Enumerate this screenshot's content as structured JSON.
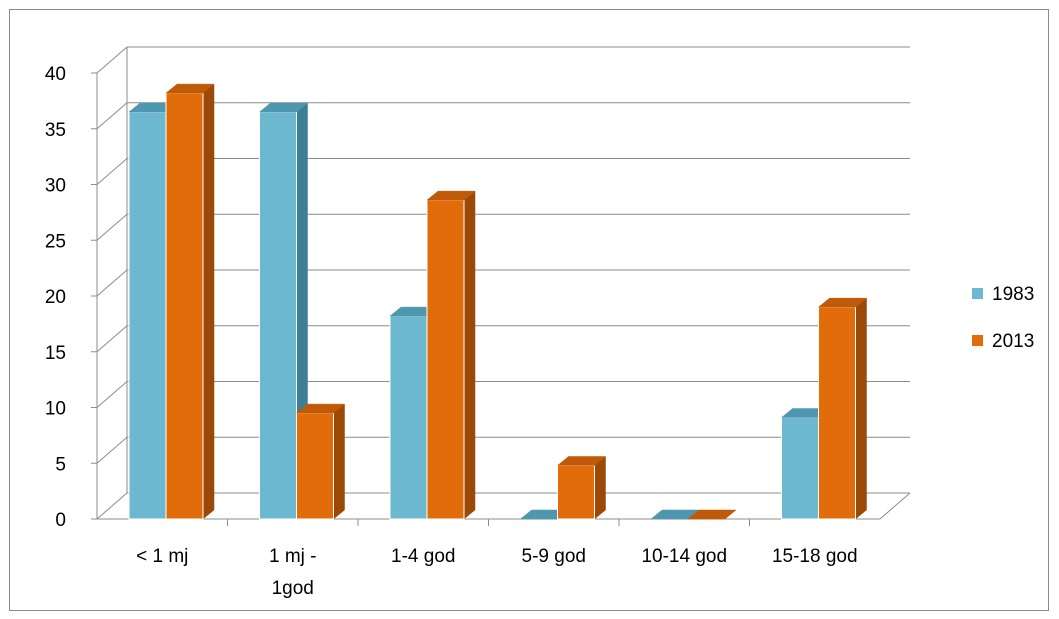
{
  "chart_data": {
    "type": "bar",
    "categories": [
      "< 1 mj",
      "1 mj - 1god",
      "1-4 god",
      "5-9 god",
      "10-14 god",
      "15-18 god"
    ],
    "category_label_lines": [
      [
        "< 1 mj"
      ],
      [
        "1 mj -",
        "1god"
      ],
      [
        "1-4 god"
      ],
      [
        "5-9 god"
      ],
      [
        "10-14 god"
      ],
      [
        "15-18 god"
      ]
    ],
    "series": [
      {
        "name": "1983",
        "values": [
          36.5,
          36.5,
          18.2,
          0,
          0,
          9.1
        ],
        "color": "#6cb8d0",
        "side_color": "#3d7f95",
        "top_color": "#4f97ae"
      },
      {
        "name": "2013",
        "values": [
          38.2,
          9.5,
          28.6,
          4.8,
          0,
          19.0
        ],
        "color": "#e36c0a",
        "side_color": "#9c4806",
        "top_color": "#c05a08"
      }
    ],
    "y_ticks": [
      "0",
      "5",
      "10",
      "15",
      "20",
      "25",
      "30",
      "35",
      "40"
    ],
    "ylim": [
      0,
      40
    ],
    "grid": true,
    "legend": "right",
    "style": "3d-column"
  }
}
